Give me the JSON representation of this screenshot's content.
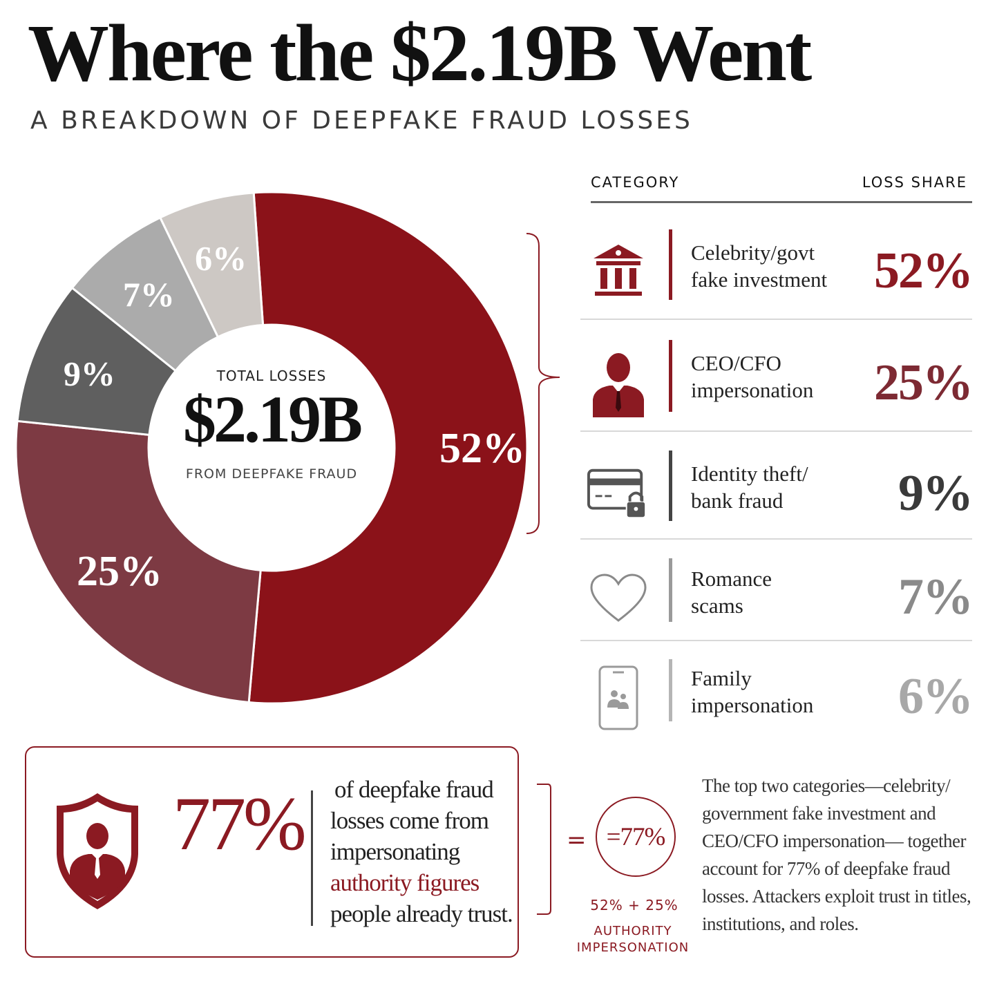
{
  "header": {
    "title": "Where the $2.19B Went",
    "subtitle": "A BREAKDOWN OF DEEPFAKE FRAUD LOSSES"
  },
  "colors": {
    "accent": "#8b1a22",
    "segments": [
      "#8b1219",
      "#7d3a43",
      "#5f5f5f",
      "#ababab",
      "#cdc8c4"
    ],
    "share_text": [
      "#8b1a22",
      "#7d2a33",
      "#3a3a3a",
      "#8a8a8a",
      "#a8a8a8"
    ]
  },
  "chart_data": {
    "type": "pie",
    "categories": [
      "Celebrity/govt fake investment",
      "CEO/CFO impersonation",
      "Identity theft/ bank fraud",
      "Romance scams",
      "Family impersonation"
    ],
    "values": [
      52,
      25,
      9,
      7,
      6
    ],
    "slice_labels": [
      "52%",
      "25%",
      "9%",
      "7%",
      "6%"
    ],
    "center": {
      "label": "TOTAL LOSSES",
      "value": "$2.19B",
      "sub": "FROM DEEPFAKE FRAUD"
    }
  },
  "table": {
    "header_category": "CATEGORY",
    "header_share": "LOSS SHARE",
    "rows": [
      {
        "icon": "bank-icon",
        "line1": "Celebrity/govt",
        "line2": "fake investment",
        "share": "52%"
      },
      {
        "icon": "executive-icon",
        "line1": "CEO/CFO",
        "line2": "impersonation",
        "share": "25%"
      },
      {
        "icon": "card-lock-icon",
        "line1": "Identity theft/",
        "line2": "bank fraud",
        "share": "9%"
      },
      {
        "icon": "heart-icon",
        "line1": "Romance",
        "line2": "scams",
        "share": "7%"
      },
      {
        "icon": "phone-family-icon",
        "line1": "Family",
        "line2": "impersonation",
        "share": "6%"
      }
    ]
  },
  "callout": {
    "icon": "shield-person-icon",
    "percent": "77%",
    "text_lines": [
      "of deepfake fraud",
      "losses come from",
      "impersonating"
    ],
    "highlight": "authority figures",
    "text_end": "people already trust."
  },
  "equation": {
    "equals": "=",
    "circle_text": "=77%",
    "sum": "52% + 25%",
    "caption_1": "AUTHORITY",
    "caption_2": "IMPERSONATION"
  },
  "summary": "The top two categories—celebrity/ government fake investment and CEO/CFO impersonation— together account for 77% of deepfake fraud losses. Attackers exploit trust in titles, institutions, and roles."
}
